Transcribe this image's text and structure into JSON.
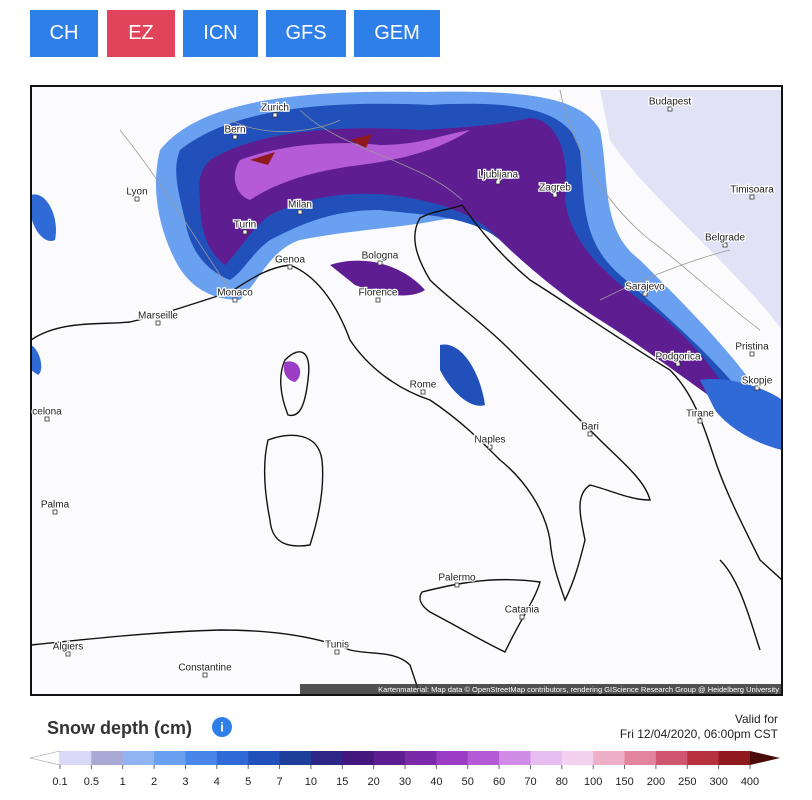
{
  "tabs": [
    {
      "label": "CH",
      "active": false
    },
    {
      "label": "EZ",
      "active": true
    },
    {
      "label": "ICN",
      "active": false
    },
    {
      "label": "GFS",
      "active": false
    },
    {
      "label": "GEM",
      "active": false
    }
  ],
  "map": {
    "cities": [
      "Zurich",
      "Bern",
      "Budapest",
      "Lyon",
      "Milan",
      "Ljubljana",
      "Zagreb",
      "Timisoara",
      "Turin",
      "Genoa",
      "Bologna",
      "Belgrade",
      "Monaco",
      "Florence",
      "Sarajevo",
      "Marseille",
      "Podgorica",
      "Pristina",
      "Rome",
      "Skopje",
      "celona",
      "Tirane",
      "Bari",
      "Naples",
      "Palma",
      "Palermo",
      "Catania",
      "Algiers",
      "Tunis",
      "Constantine"
    ],
    "attribution": "Kartenmaterial: Map data © OpenStreetMap contributors, rendering GIScience Research Group @ Heidelberg University"
  },
  "legend": {
    "title": "Snow depth (cm)",
    "valid_label": "Valid for",
    "valid_time": "Fri 12/04/2020, 06:00pm CST",
    "labels": [
      "0.1",
      "0.5",
      "1",
      "2",
      "3",
      "4",
      "5",
      "7",
      "10",
      "15",
      "20",
      "30",
      "40",
      "50",
      "60",
      "70",
      "80",
      "100",
      "150",
      "200",
      "250",
      "300",
      "400"
    ],
    "under_color": "#ffffff",
    "over_color": "#4a0c08",
    "colors": [
      "#d9d9f7",
      "#a9a9d6",
      "#90b4f2",
      "#6aa0f0",
      "#4a86e8",
      "#2f6ad6",
      "#2150bb",
      "#1d3f99",
      "#2c2686",
      "#44187c",
      "#5e1e92",
      "#7a2aa8",
      "#9a3cc4",
      "#b55bd8",
      "#d08ce6",
      "#e6bdf0",
      "#f2d2ee",
      "#eeb0c6",
      "#e2849c",
      "#cf5670",
      "#b6303e",
      "#8e1a1e"
    ]
  }
}
